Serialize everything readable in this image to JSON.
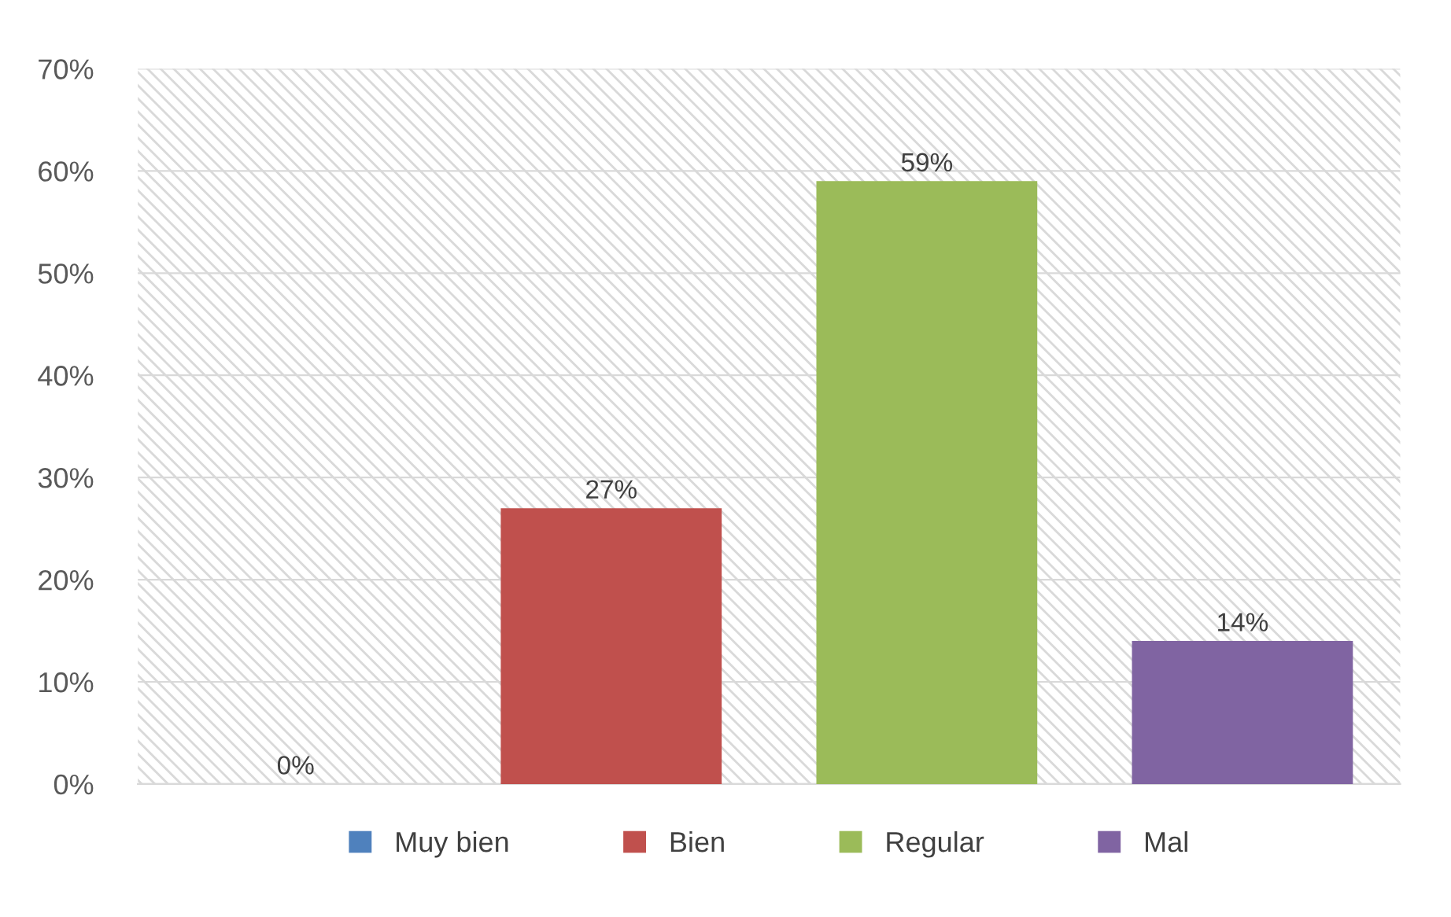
{
  "chart_data": {
    "type": "bar",
    "categories": [
      null,
      null,
      null,
      null
    ],
    "series": [
      {
        "name": "Muy bien",
        "color": "#4f81bd",
        "values": [
          0,
          null,
          null,
          null
        ],
        "value_labels": [
          "0%",
          null,
          null,
          null
        ]
      },
      {
        "name": "Bien",
        "color": "#c0504d",
        "values": [
          null,
          27,
          null,
          null
        ],
        "value_labels": [
          null,
          "27%",
          null,
          null
        ]
      },
      {
        "name": "Regular",
        "color": "#9bbb59",
        "values": [
          null,
          null,
          59,
          null
        ],
        "value_labels": [
          null,
          null,
          "59%",
          null
        ]
      },
      {
        "name": "Mal",
        "color": "#8064a2",
        "values": [
          null,
          null,
          null,
          14
        ],
        "value_labels": [
          null,
          null,
          null,
          "14%"
        ]
      }
    ],
    "ylim": [
      0,
      70
    ],
    "yticks": [
      {
        "value": 0,
        "label": "0%"
      },
      {
        "value": 10,
        "label": "10%"
      },
      {
        "value": 20,
        "label": "20%"
      },
      {
        "value": 30,
        "label": "30%"
      },
      {
        "value": 40,
        "label": "40%"
      },
      {
        "value": 50,
        "label": "50%"
      },
      {
        "value": 60,
        "label": "60%"
      },
      {
        "value": 70,
        "label": "70%"
      }
    ],
    "grid": "y",
    "legend": "bottom"
  }
}
